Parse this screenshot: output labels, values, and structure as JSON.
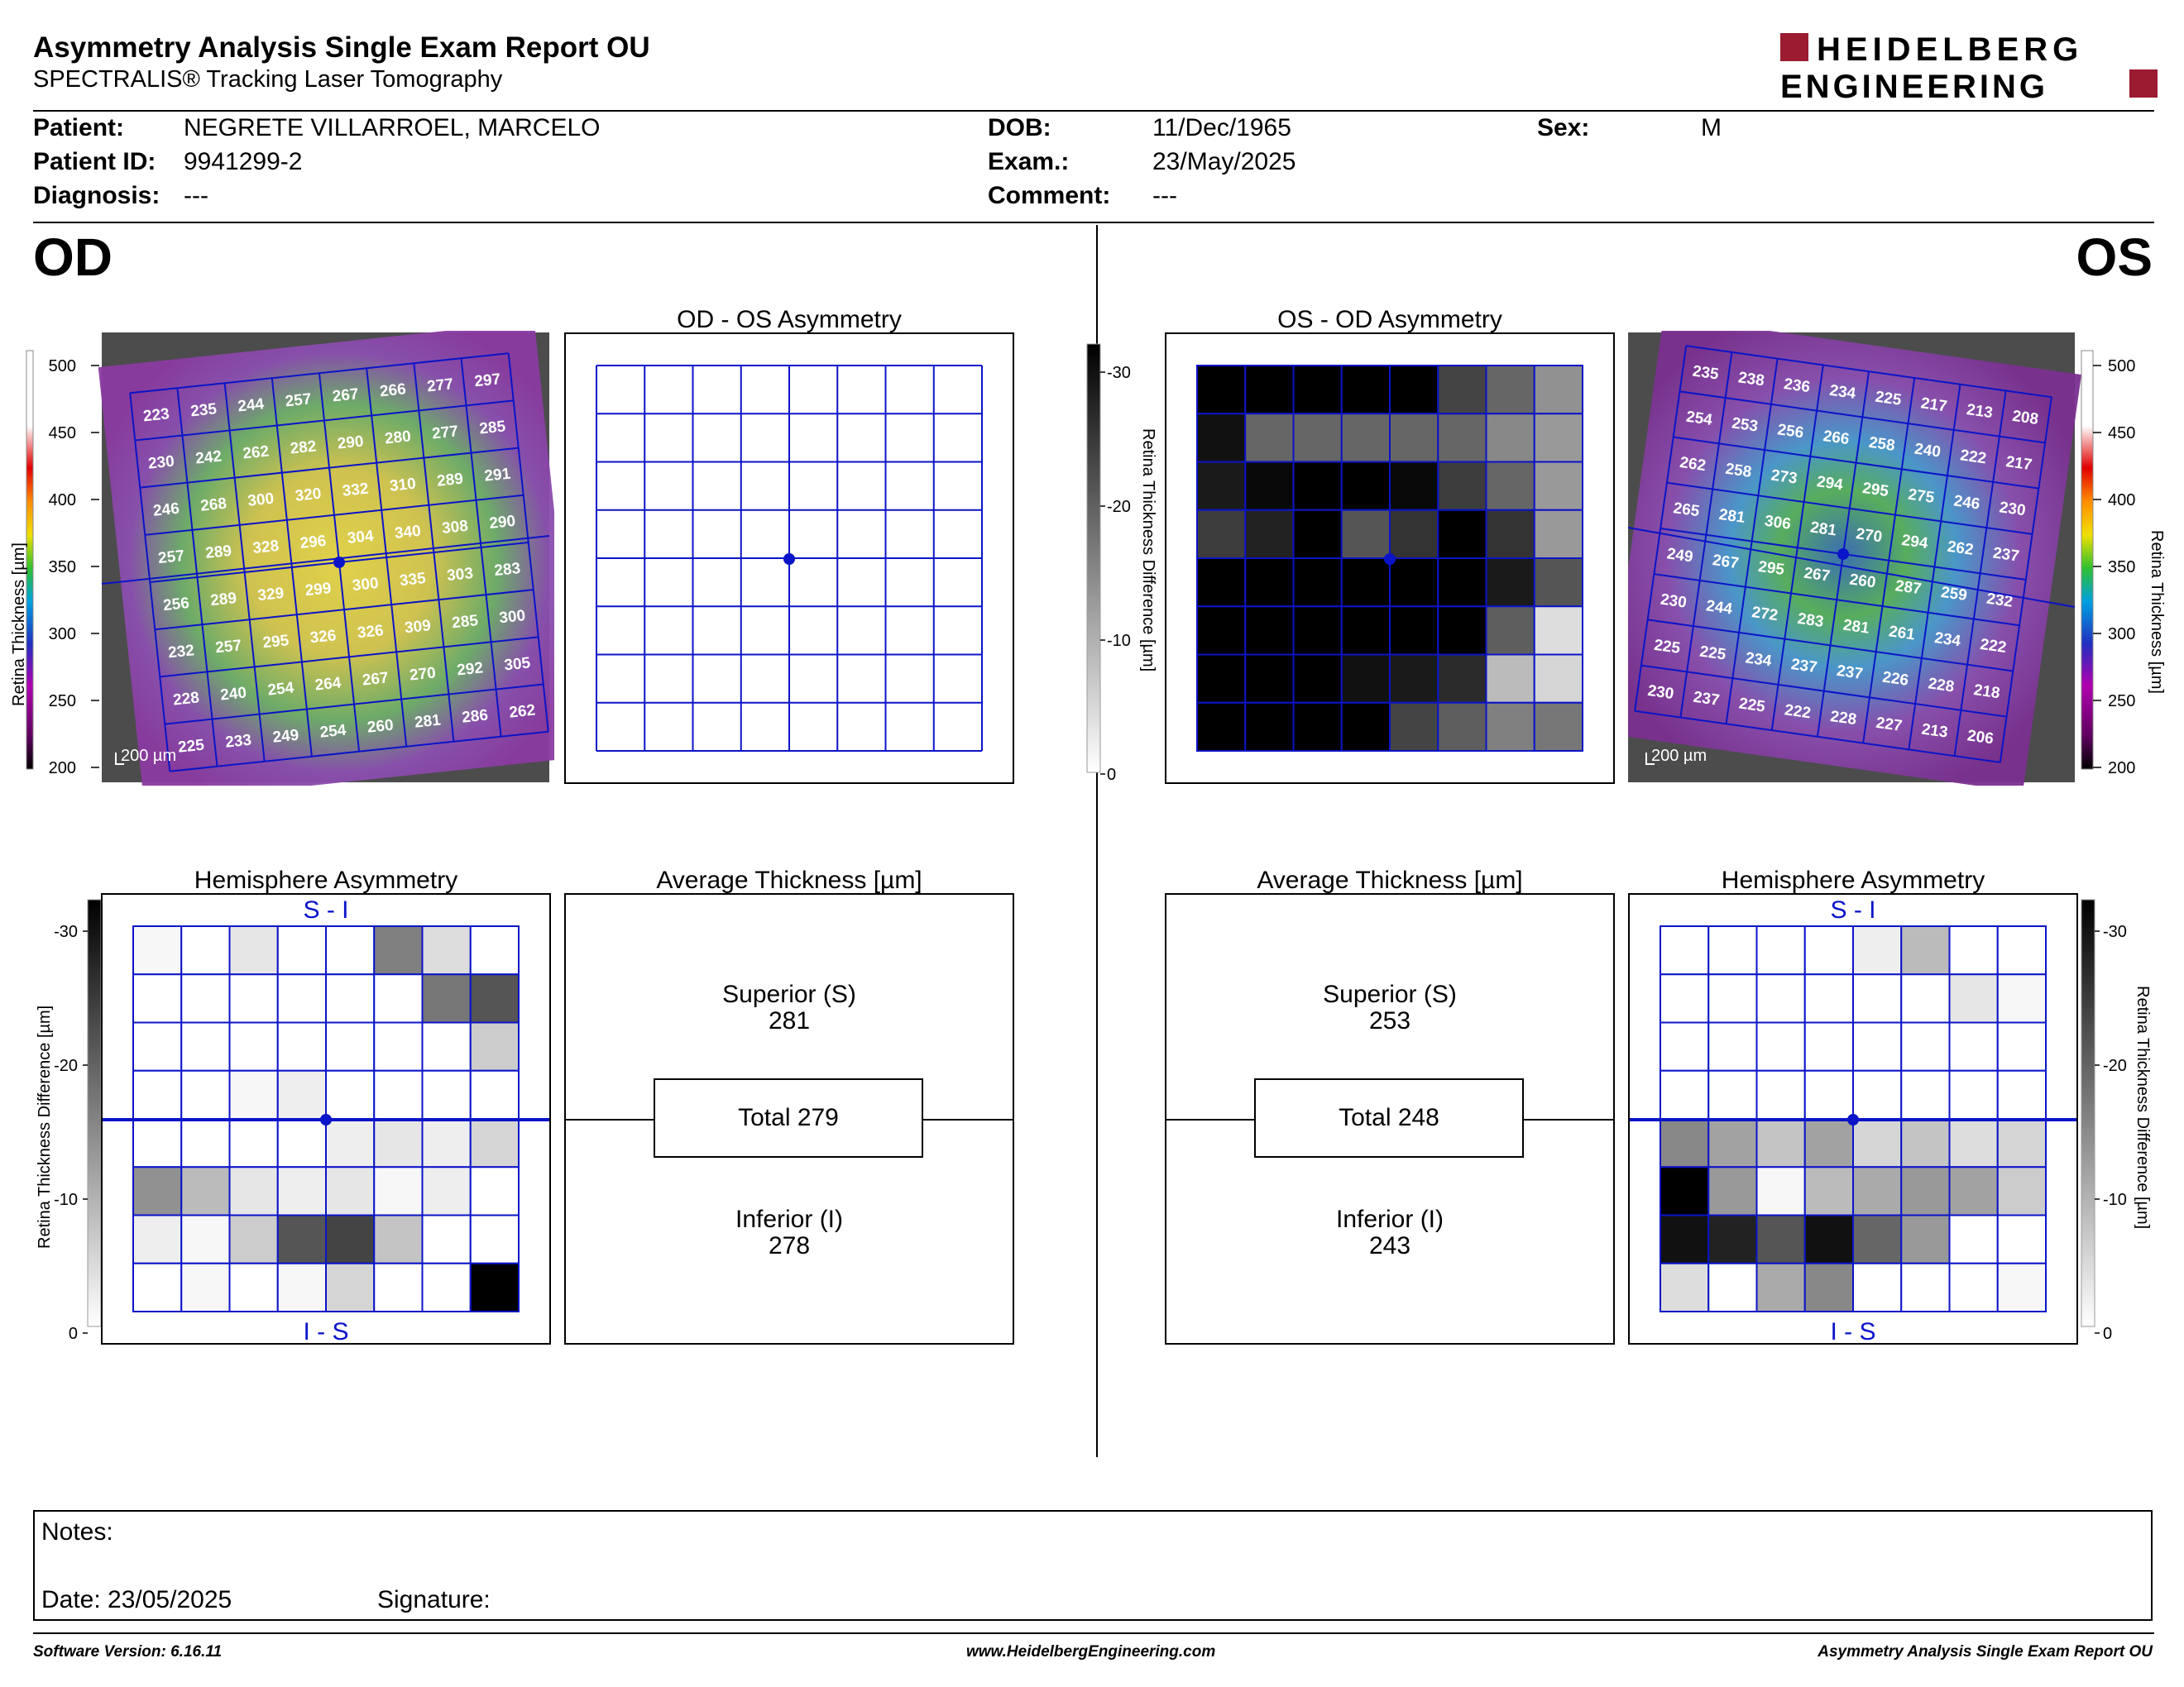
{
  "header": {
    "title": "Asymmetry Analysis Single Exam Report OU",
    "subtitle": "SPECTRALIS® Tracking Laser Tomography",
    "logo_line1": "HEIDELBERG",
    "logo_line2": "ENGINEERING"
  },
  "patient": {
    "patient_label": "Patient:",
    "patient_value": "NEGRETE VILLARROEL, MARCELO",
    "id_label": "Patient ID:",
    "id_value": "9941299-2",
    "diagnosis_label": "Diagnosis:",
    "diagnosis_value": "---",
    "dob_label": "DOB:",
    "dob_value": "11/Dec/1965",
    "exam_label": "Exam.:",
    "exam_value": "23/May/2025",
    "comment_label": "Comment:",
    "comment_value": "---",
    "sex_label": "Sex:",
    "sex_value": "M"
  },
  "eyes": {
    "od": "OD",
    "os": "OS"
  },
  "colors": {
    "grid_blue": "#0a14c8",
    "black": "#000000"
  },
  "titles": {
    "od_os_asym": "OD - OS Asymmetry",
    "os_od_asym": "OS - OD Asymmetry",
    "hemi": "Hemisphere Asymmetry",
    "avg": "Average Thickness [µm]",
    "si": "S - I",
    "is": "I - S"
  },
  "axis": {
    "thick_label": "Retina  Thickness [µm]",
    "thick_ticks": [
      "500",
      "450",
      "400",
      "350",
      "300",
      "250",
      "200"
    ],
    "diff_label": "Retina Thickness Difference [µm]",
    "diff_ticks": [
      "-30",
      "-20",
      "-10",
      "0"
    ],
    "scale_bar": "200 µm"
  },
  "od_thickness": [
    [
      "223",
      "235",
      "244",
      "257",
      "267",
      "266",
      "277",
      "297"
    ],
    [
      "230",
      "242",
      "262",
      "282",
      "290",
      "280",
      "277",
      "285"
    ],
    [
      "246",
      "268",
      "300",
      "320",
      "332",
      "310",
      "289",
      "291"
    ],
    [
      "257",
      "289",
      "328",
      "296",
      "304",
      "340",
      "308",
      "290"
    ],
    [
      "256",
      "289",
      "329",
      "299",
      "300",
      "335",
      "303",
      "283"
    ],
    [
      "232",
      "257",
      "295",
      "326",
      "326",
      "309",
      "285",
      "300"
    ],
    [
      "228",
      "240",
      "254",
      "264",
      "267",
      "270",
      "292",
      "305"
    ],
    [
      "225",
      "233",
      "249",
      "254",
      "260",
      "281",
      "286",
      "262"
    ]
  ],
  "os_thickness": [
    [
      "235",
      "238",
      "236",
      "234",
      "225",
      "217",
      "213",
      "208"
    ],
    [
      "254",
      "253",
      "256",
      "266",
      "258",
      "240",
      "222",
      "217"
    ],
    [
      "262",
      "258",
      "273",
      "294",
      "295",
      "275",
      "246",
      "230"
    ],
    [
      "265",
      "281",
      "306",
      "281",
      "270",
      "294",
      "262",
      "237"
    ],
    [
      "249",
      "267",
      "295",
      "267",
      "260",
      "287",
      "259",
      "232"
    ],
    [
      "230",
      "244",
      "272",
      "283",
      "281",
      "261",
      "234",
      "222"
    ],
    [
      "225",
      "225",
      "234",
      "237",
      "237",
      "226",
      "228",
      "218"
    ],
    [
      "230",
      "237",
      "225",
      "222",
      "228",
      "227",
      "213",
      "206"
    ]
  ],
  "os_od_asym_grid": [
    [
      30,
      30,
      30,
      30,
      30,
      22,
      18,
      13
    ],
    [
      28,
      18,
      18,
      18,
      18,
      18,
      14,
      12
    ],
    [
      27,
      29,
      30,
      30,
      29,
      23,
      18,
      12
    ],
    [
      23,
      26,
      30,
      20,
      24,
      30,
      24,
      12
    ],
    [
      30,
      30,
      30,
      30,
      30,
      30,
      27,
      20
    ],
    [
      30,
      30,
      30,
      30,
      30,
      30,
      19,
      4
    ],
    [
      30,
      30,
      30,
      28,
      27,
      25,
      8,
      5
    ],
    [
      30,
      30,
      30,
      30,
      22,
      19,
      15,
      16
    ]
  ],
  "od_hemi_grid": [
    [
      1,
      0,
      3,
      0,
      0,
      15,
      4,
      0
    ],
    [
      0,
      0,
      0,
      0,
      0,
      0,
      16,
      20
    ],
    [
      0,
      0,
      0,
      0,
      0,
      0,
      0,
      6
    ],
    [
      0,
      0,
      1,
      2,
      0,
      0,
      0,
      0
    ],
    [
      0,
      0,
      0,
      0,
      2,
      3,
      2,
      5
    ],
    [
      13,
      8,
      3,
      2,
      3,
      1,
      2,
      0
    ],
    [
      2,
      1,
      6,
      20,
      22,
      7,
      0,
      0
    ],
    [
      0,
      1,
      0,
      1,
      5,
      0,
      0,
      30
    ]
  ],
  "os_hemi_grid": [
    [
      0,
      0,
      0,
      0,
      2,
      8,
      0,
      0
    ],
    [
      0,
      0,
      0,
      0,
      0,
      0,
      3,
      1
    ],
    [
      0,
      0,
      0,
      0,
      0,
      0,
      0,
      0
    ],
    [
      0,
      0,
      0,
      0,
      0,
      0,
      0,
      0
    ],
    [
      14,
      11,
      7,
      11,
      5,
      7,
      4,
      5
    ],
    [
      30,
      12,
      1,
      8,
      10,
      12,
      11,
      6
    ],
    [
      28,
      26,
      20,
      28,
      18,
      12,
      0,
      0
    ],
    [
      4,
      0,
      10,
      14,
      0,
      0,
      0,
      1
    ]
  ],
  "od_avg": {
    "superior_label": "Superior (S)",
    "superior": "281",
    "total": "Total 279",
    "inferior_label": "Inferior (I)",
    "inferior": "278"
  },
  "os_avg": {
    "superior_label": "Superior (S)",
    "superior": "253",
    "total": "Total 248",
    "inferior_label": "Inferior (I)",
    "inferior": "243"
  },
  "notes": {
    "label": "Notes:",
    "date": "Date: 23/05/2025",
    "signature": "Signature:"
  },
  "footer": {
    "left": "Software Version: 6.16.11",
    "center": "www.HeidelbergEngineering.com",
    "right": "Asymmetry Analysis Single Exam Report OU"
  }
}
